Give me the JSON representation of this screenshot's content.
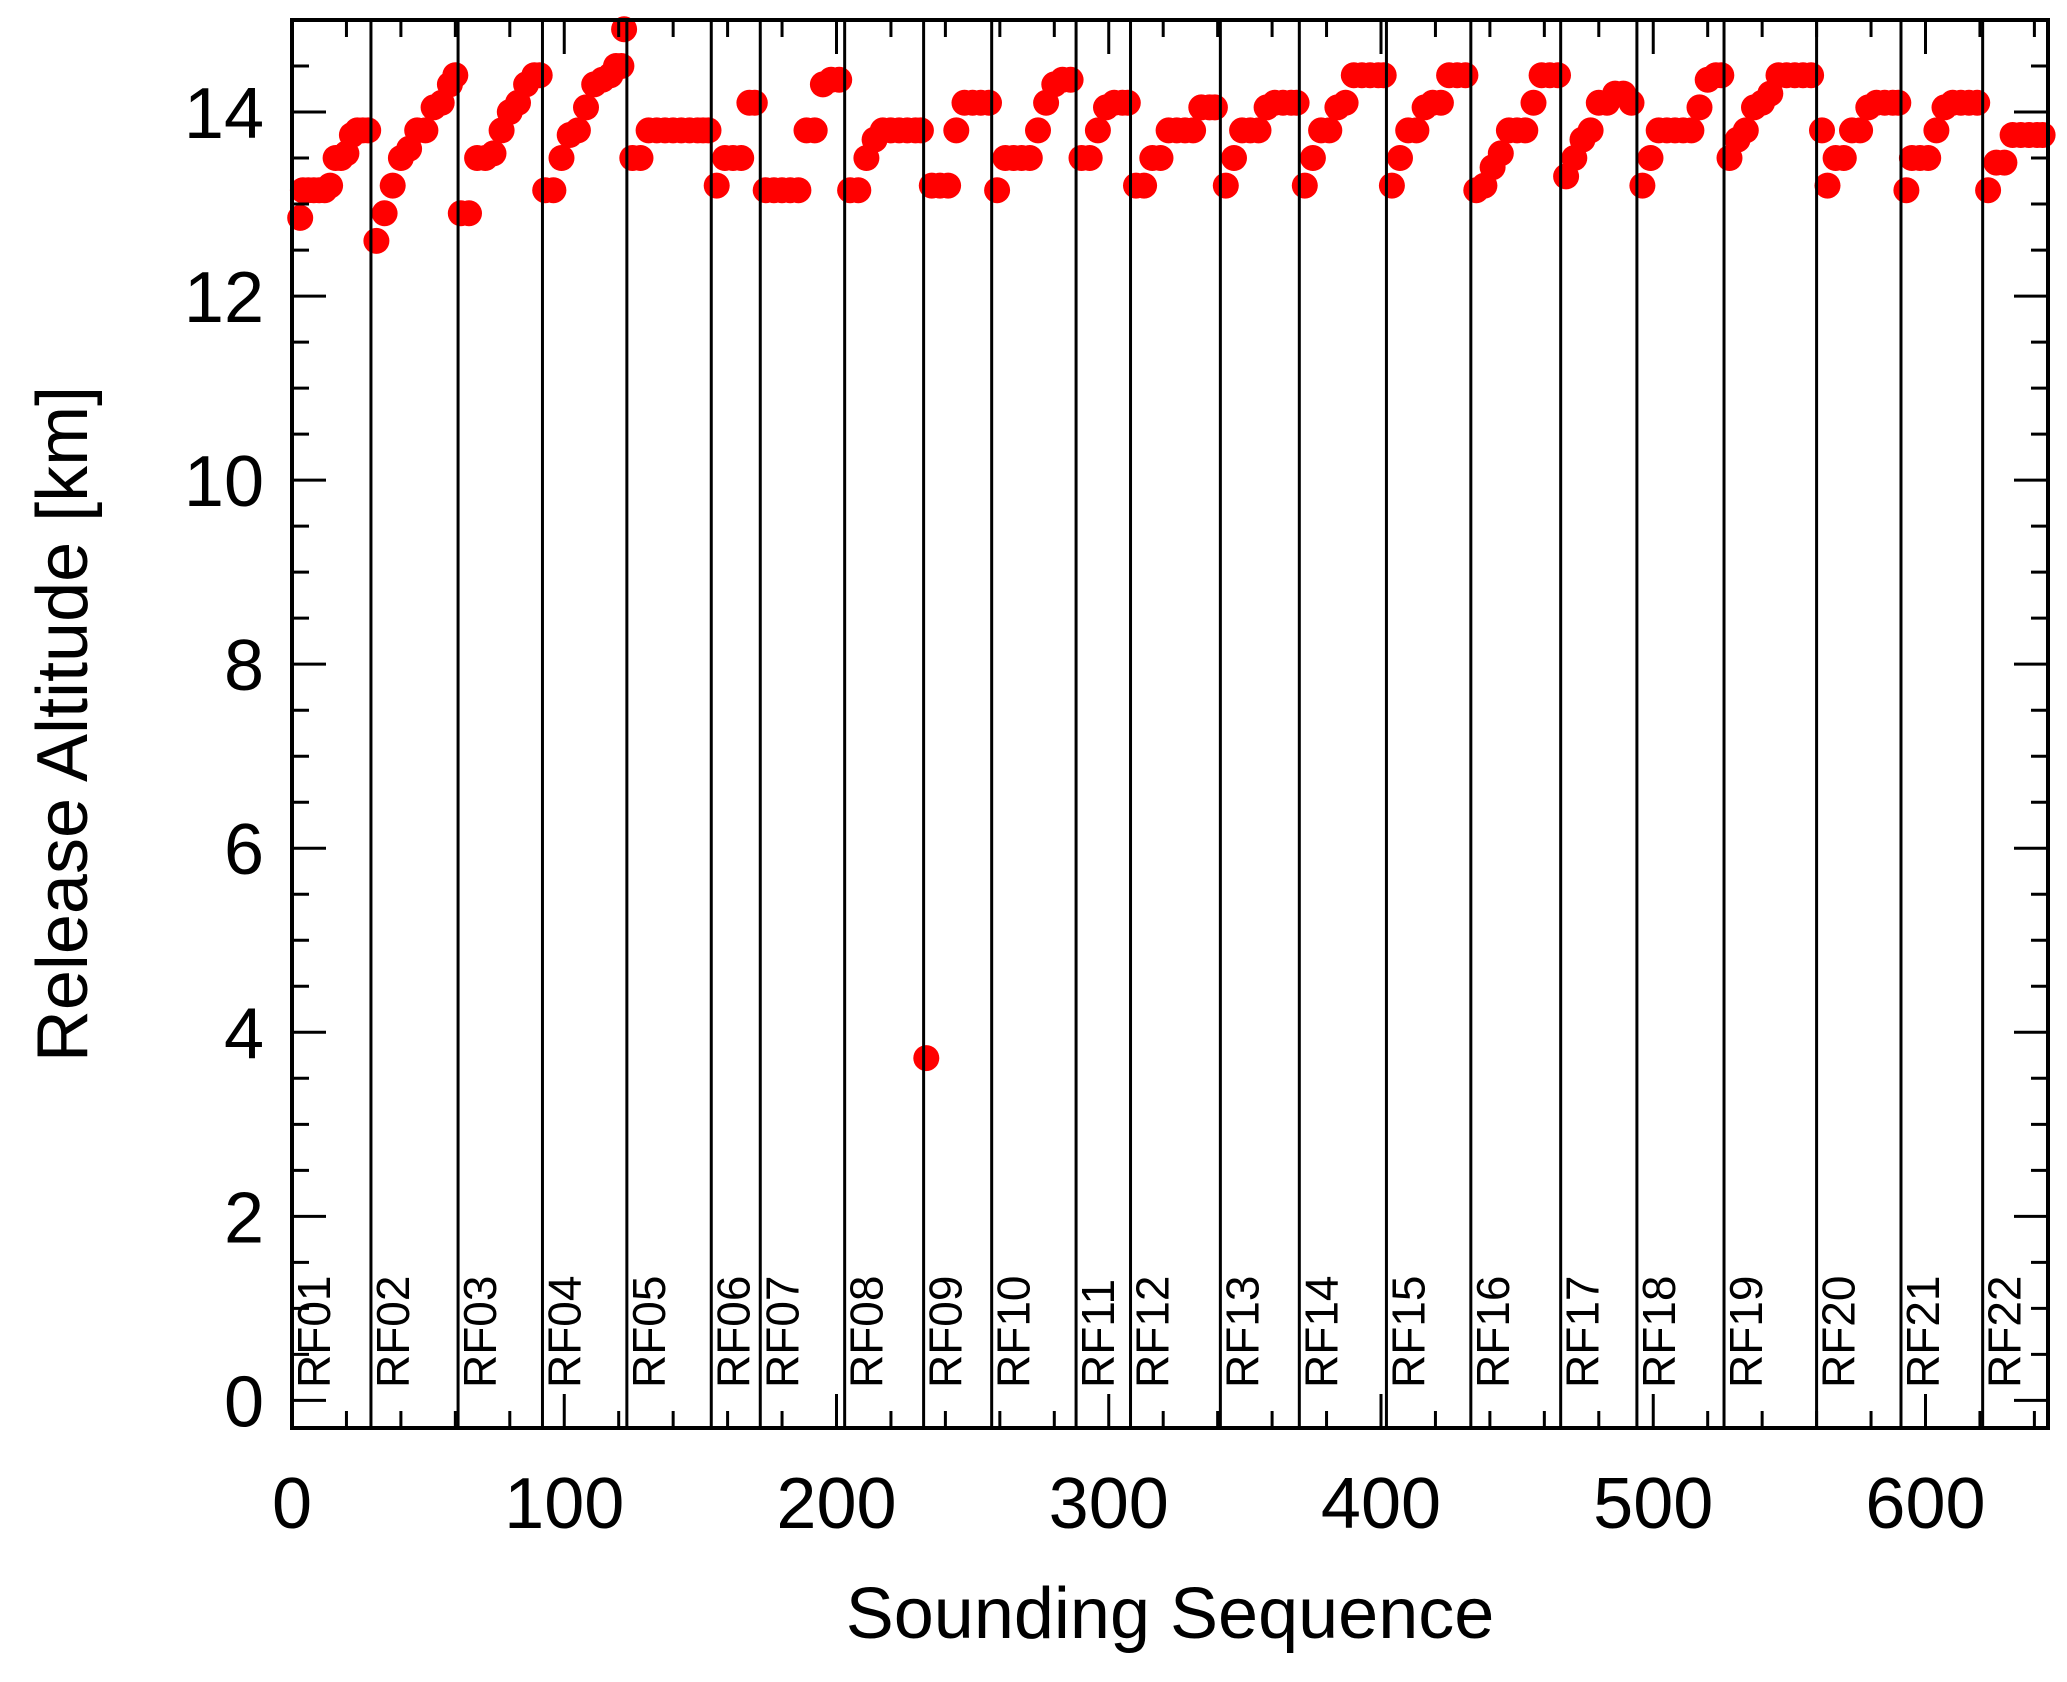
{
  "chart_data": {
    "type": "scatter",
    "xlabel": "Sounding Sequence",
    "ylabel": "Release Altitude [km]",
    "xlim": [
      0,
      645
    ],
    "ylim": [
      -0.3,
      15
    ],
    "xticks": [
      0,
      100,
      200,
      300,
      400,
      500,
      600
    ],
    "yticks": [
      0,
      2,
      4,
      6,
      8,
      10,
      12,
      14
    ],
    "x_minor_step": 20,
    "y_minor_step": 0.5,
    "grid": false,
    "legend": "none",
    "marker_color": "#ff0000",
    "flight_dividers": [
      29,
      61,
      92,
      123,
      154,
      172,
      203,
      232,
      257,
      288,
      308,
      341,
      370,
      402,
      433,
      466,
      494,
      526,
      560,
      591,
      621
    ],
    "flight_labels": [
      "RF01",
      "RF02",
      "RF03",
      "RF04",
      "RF05",
      "RF06",
      "RF07",
      "RF08",
      "RF09",
      "RF10",
      "RF11",
      "RF12",
      "RF13",
      "RF14",
      "RF15",
      "RF16",
      "RF17",
      "RF18",
      "RF19",
      "RF20",
      "RF21",
      "RF22"
    ],
    "series": [
      {
        "values": [
          [
            3,
            12.85
          ],
          [
            4,
            13.15
          ],
          [
            6,
            13.15
          ],
          [
            8,
            13.15
          ],
          [
            10,
            13.15
          ],
          [
            12,
            13.15
          ],
          [
            14,
            13.2
          ],
          [
            16,
            13.5
          ],
          [
            18,
            13.5
          ],
          [
            20,
            13.55
          ],
          [
            22,
            13.75
          ],
          [
            24,
            13.8
          ],
          [
            26,
            13.8
          ],
          [
            28,
            13.8
          ],
          [
            31,
            12.6
          ],
          [
            34,
            12.9
          ],
          [
            37,
            13.2
          ],
          [
            40,
            13.5
          ],
          [
            43,
            13.6
          ],
          [
            46,
            13.8
          ],
          [
            49,
            13.8
          ],
          [
            52,
            14.05
          ],
          [
            55,
            14.1
          ],
          [
            58,
            14.3
          ],
          [
            60,
            14.4
          ],
          [
            62,
            12.9
          ],
          [
            65,
            12.9
          ],
          [
            68,
            13.5
          ],
          [
            71,
            13.5
          ],
          [
            74,
            13.55
          ],
          [
            77,
            13.8
          ],
          [
            80,
            14.0
          ],
          [
            83,
            14.1
          ],
          [
            86,
            14.3
          ],
          [
            89,
            14.4
          ],
          [
            91,
            14.4
          ],
          [
            93,
            13.15
          ],
          [
            96,
            13.15
          ],
          [
            99,
            13.5
          ],
          [
            102,
            13.75
          ],
          [
            105,
            13.8
          ],
          [
            108,
            14.05
          ],
          [
            111,
            14.3
          ],
          [
            114,
            14.35
          ],
          [
            117,
            14.4
          ],
          [
            119,
            14.5
          ],
          [
            121,
            14.5
          ],
          [
            122,
            14.9
          ],
          [
            125,
            13.5
          ],
          [
            128,
            13.5
          ],
          [
            131,
            13.8
          ],
          [
            134,
            13.8
          ],
          [
            137,
            13.8
          ],
          [
            140,
            13.8
          ],
          [
            143,
            13.8
          ],
          [
            146,
            13.8
          ],
          [
            149,
            13.8
          ],
          [
            151,
            13.8
          ],
          [
            153,
            13.8
          ],
          [
            156,
            13.2
          ],
          [
            159,
            13.5
          ],
          [
            162,
            13.5
          ],
          [
            165,
            13.5
          ],
          [
            168,
            14.1
          ],
          [
            170,
            14.1
          ],
          [
            174,
            13.15
          ],
          [
            177,
            13.15
          ],
          [
            180,
            13.15
          ],
          [
            183,
            13.15
          ],
          [
            186,
            13.15
          ],
          [
            189,
            13.8
          ],
          [
            192,
            13.8
          ],
          [
            195,
            14.3
          ],
          [
            198,
            14.35
          ],
          [
            201,
            14.35
          ],
          [
            205,
            13.15
          ],
          [
            208,
            13.15
          ],
          [
            211,
            13.5
          ],
          [
            214,
            13.7
          ],
          [
            217,
            13.8
          ],
          [
            220,
            13.8
          ],
          [
            223,
            13.8
          ],
          [
            226,
            13.8
          ],
          [
            229,
            13.8
          ],
          [
            231,
            13.8
          ],
          [
            233,
            3.72
          ],
          [
            235,
            13.2
          ],
          [
            238,
            13.2
          ],
          [
            241,
            13.2
          ],
          [
            244,
            13.8
          ],
          [
            247,
            14.1
          ],
          [
            250,
            14.1
          ],
          [
            253,
            14.1
          ],
          [
            256,
            14.1
          ],
          [
            259,
            13.15
          ],
          [
            262,
            13.5
          ],
          [
            265,
            13.5
          ],
          [
            268,
            13.5
          ],
          [
            271,
            13.5
          ],
          [
            274,
            13.8
          ],
          [
            277,
            14.1
          ],
          [
            280,
            14.3
          ],
          [
            283,
            14.35
          ],
          [
            286,
            14.35
          ],
          [
            290,
            13.5
          ],
          [
            293,
            13.5
          ],
          [
            296,
            13.8
          ],
          [
            299,
            14.05
          ],
          [
            302,
            14.1
          ],
          [
            305,
            14.1
          ],
          [
            307,
            14.1
          ],
          [
            310,
            13.2
          ],
          [
            313,
            13.2
          ],
          [
            316,
            13.5
          ],
          [
            319,
            13.5
          ],
          [
            322,
            13.8
          ],
          [
            325,
            13.8
          ],
          [
            328,
            13.8
          ],
          [
            331,
            13.8
          ],
          [
            334,
            14.05
          ],
          [
            337,
            14.05
          ],
          [
            339,
            14.05
          ],
          [
            343,
            13.2
          ],
          [
            346,
            13.5
          ],
          [
            349,
            13.8
          ],
          [
            352,
            13.8
          ],
          [
            355,
            13.8
          ],
          [
            358,
            14.05
          ],
          [
            361,
            14.1
          ],
          [
            364,
            14.1
          ],
          [
            367,
            14.1
          ],
          [
            369,
            14.1
          ],
          [
            372,
            13.2
          ],
          [
            375,
            13.5
          ],
          [
            378,
            13.8
          ],
          [
            381,
            13.8
          ],
          [
            384,
            14.05
          ],
          [
            387,
            14.1
          ],
          [
            390,
            14.4
          ],
          [
            393,
            14.4
          ],
          [
            396,
            14.4
          ],
          [
            399,
            14.4
          ],
          [
            401,
            14.4
          ],
          [
            404,
            13.2
          ],
          [
            407,
            13.5
          ],
          [
            410,
            13.8
          ],
          [
            413,
            13.8
          ],
          [
            416,
            14.05
          ],
          [
            419,
            14.1
          ],
          [
            422,
            14.1
          ],
          [
            425,
            14.4
          ],
          [
            428,
            14.4
          ],
          [
            431,
            14.4
          ],
          [
            435,
            13.15
          ],
          [
            438,
            13.2
          ],
          [
            441,
            13.4
          ],
          [
            444,
            13.55
          ],
          [
            447,
            13.8
          ],
          [
            450,
            13.8
          ],
          [
            453,
            13.8
          ],
          [
            456,
            14.1
          ],
          [
            459,
            14.4
          ],
          [
            462,
            14.4
          ],
          [
            465,
            14.4
          ],
          [
            468,
            13.3
          ],
          [
            471,
            13.5
          ],
          [
            474,
            13.7
          ],
          [
            477,
            13.8
          ],
          [
            480,
            14.1
          ],
          [
            483,
            14.1
          ],
          [
            486,
            14.2
          ],
          [
            489,
            14.2
          ],
          [
            492,
            14.1
          ],
          [
            496,
            13.2
          ],
          [
            499,
            13.5
          ],
          [
            502,
            13.8
          ],
          [
            505,
            13.8
          ],
          [
            508,
            13.8
          ],
          [
            511,
            13.8
          ],
          [
            514,
            13.8
          ],
          [
            517,
            14.05
          ],
          [
            520,
            14.35
          ],
          [
            523,
            14.4
          ],
          [
            525,
            14.4
          ],
          [
            528,
            13.5
          ],
          [
            531,
            13.7
          ],
          [
            534,
            13.8
          ],
          [
            537,
            14.05
          ],
          [
            540,
            14.1
          ],
          [
            543,
            14.2
          ],
          [
            546,
            14.4
          ],
          [
            549,
            14.4
          ],
          [
            552,
            14.4
          ],
          [
            555,
            14.4
          ],
          [
            558,
            14.4
          ],
          [
            562,
            13.8
          ],
          [
            564,
            13.2
          ],
          [
            567,
            13.5
          ],
          [
            570,
            13.5
          ],
          [
            573,
            13.8
          ],
          [
            576,
            13.8
          ],
          [
            579,
            14.05
          ],
          [
            582,
            14.1
          ],
          [
            585,
            14.1
          ],
          [
            588,
            14.1
          ],
          [
            590,
            14.1
          ],
          [
            593,
            13.15
          ],
          [
            595,
            13.5
          ],
          [
            598,
            13.5
          ],
          [
            601,
            13.5
          ],
          [
            604,
            13.8
          ],
          [
            607,
            14.05
          ],
          [
            610,
            14.1
          ],
          [
            613,
            14.1
          ],
          [
            616,
            14.1
          ],
          [
            619,
            14.1
          ],
          [
            623,
            13.15
          ],
          [
            626,
            13.45
          ],
          [
            629,
            13.45
          ],
          [
            632,
            13.75
          ],
          [
            635,
            13.75
          ],
          [
            638,
            13.75
          ],
          [
            641,
            13.75
          ],
          [
            643,
            13.75
          ]
        ]
      }
    ]
  }
}
